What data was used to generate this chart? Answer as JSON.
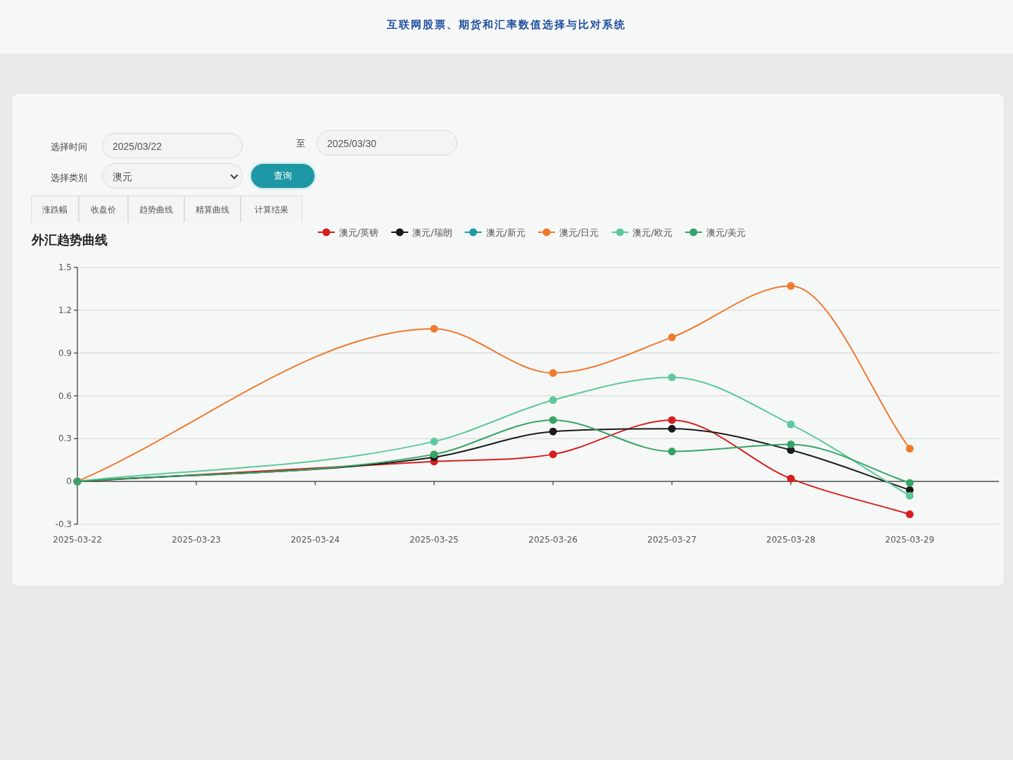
{
  "chart_data": {
    "type": "line",
    "title": "外汇趋势曲线",
    "subtitle": "互联网股票、期货和汇率数值选择与比对系统",
    "annotations": [
      "选择时间",
      "2025/03/22",
      "至",
      "2025/03/30",
      "选择类别",
      "澳元",
      "查询",
      "涨跌幅",
      "收盘价",
      "趋势曲线",
      "精算曲线",
      "计算结果"
    ],
    "x": [
      "2025-03-22",
      "2025-03-25",
      "2025-03-26",
      "2025-03-27",
      "2025-03-28",
      "2025-03-29"
    ],
    "xlim": [
      "2025-03-22",
      "2025-03-29T18:00"
    ],
    "xticks": [
      "2025-03-22",
      "2025-03-23",
      "2025-03-24",
      "2025-03-25",
      "2025-03-26",
      "2025-03-27",
      "2025-03-28",
      "2025-03-29"
    ],
    "ylim": [
      -0.3,
      1.5
    ],
    "yticks": [
      -0.3,
      0,
      0.3,
      0.6,
      0.9,
      1.2,
      1.5
    ],
    "grid": "y",
    "legend": "top",
    "marker": "circle",
    "line_style": "solid",
    "series": [
      {
        "name": "澳元/英镑",
        "color": "#d81e1e",
        "values": [
          0,
          0.14,
          0.19,
          0.43,
          0.02,
          -0.23
        ]
      },
      {
        "name": "澳元/瑞朗",
        "color": "#1a1a1a",
        "values": [
          0,
          0.17,
          0.35,
          0.37,
          0.22,
          -0.06
        ]
      },
      {
        "name": "澳元/新元",
        "color": "#1f9aa3",
        "values": [
          null,
          null,
          null,
          null,
          null,
          null
        ]
      },
      {
        "name": "澳元/日元",
        "color": "#f07b2f",
        "values": [
          0,
          1.07,
          0.76,
          1.01,
          1.37,
          0.23
        ]
      },
      {
        "name": "澳元/欧元",
        "color": "#5dc99a",
        "values": [
          0,
          0.28,
          0.57,
          0.73,
          0.4,
          -0.1
        ]
      },
      {
        "name": "澳元/美元",
        "color": "#36a466",
        "values": [
          0,
          0.19,
          0.43,
          0.21,
          0.26,
          -0.01
        ]
      }
    ]
  }
}
